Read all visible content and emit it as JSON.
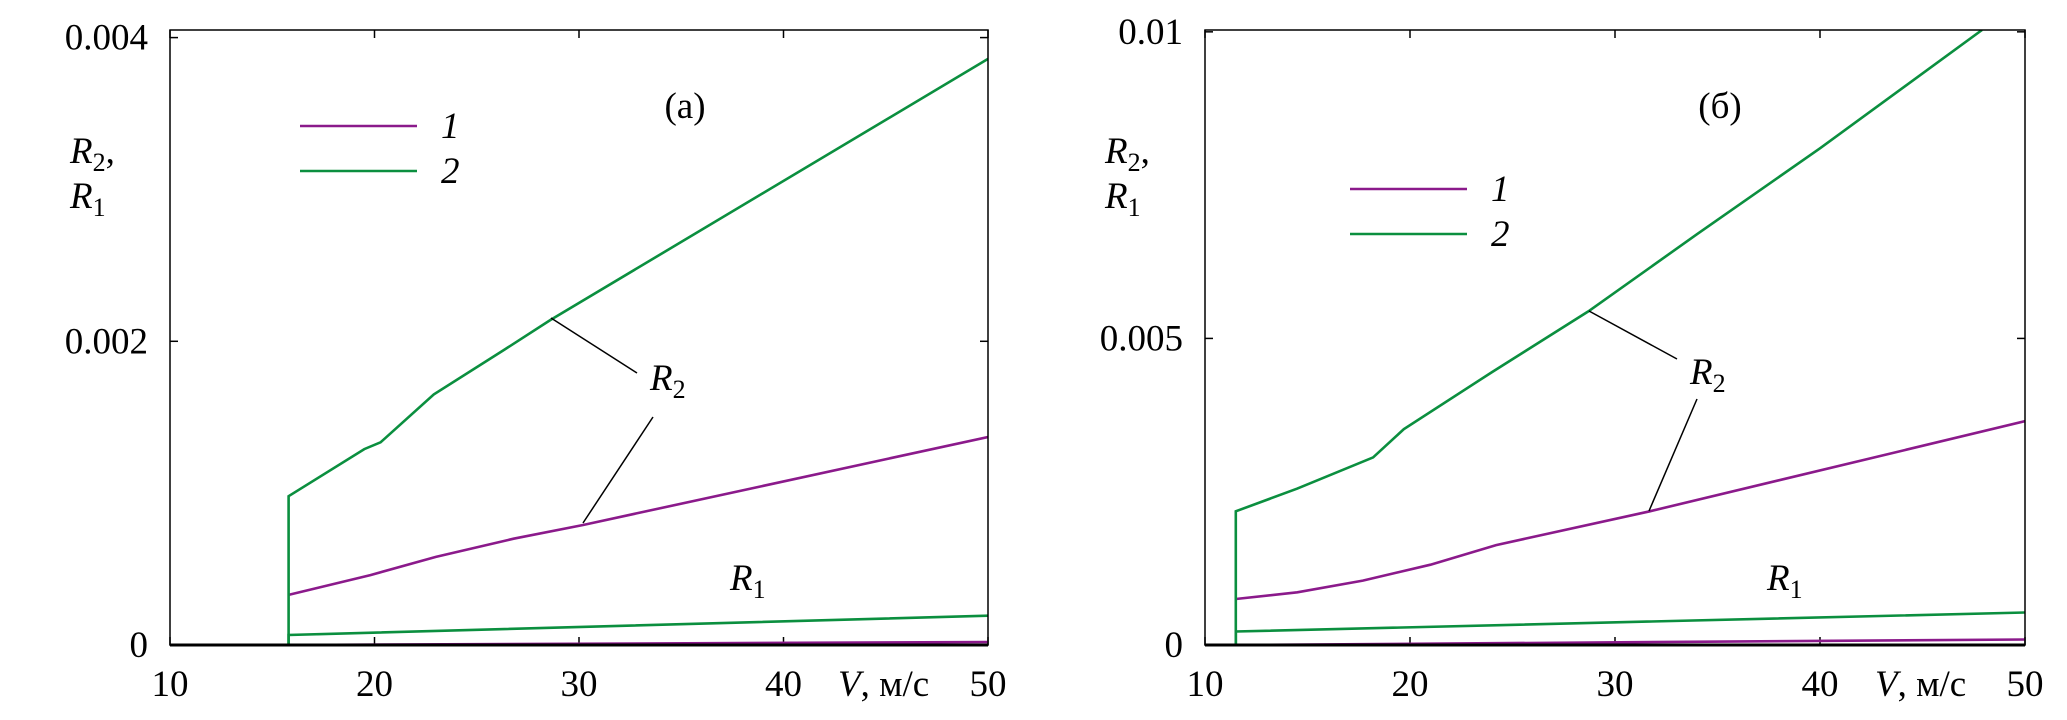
{
  "colors": {
    "series1": "#8b1a8b",
    "series2": "#0b8f3f",
    "axis": "#000000"
  },
  "chart_data": [
    {
      "type": "line",
      "panel_label": "(а)",
      "xlabel": {
        "var": "V",
        "unit": ", м/с"
      },
      "ylabel": {
        "line1_var": "R",
        "line1_sub": "2",
        "line1_suffix": ",",
        "line2_var": "R",
        "line2_sub": "1"
      },
      "xlim": [
        10,
        50
      ],
      "ylim": [
        0,
        0.00405
      ],
      "xticks": [
        "10",
        "20",
        "30",
        "40",
        "50"
      ],
      "xtick_values": [
        10,
        20,
        30,
        40,
        50
      ],
      "yticks": [
        "0",
        "0.002",
        "0.004"
      ],
      "ytick_values": [
        0,
        0.002,
        0.004
      ],
      "legend": {
        "placement": "top-left",
        "entries": [
          "1",
          "2"
        ]
      },
      "annotations": {
        "r2": {
          "var": "R",
          "sub": "2"
        },
        "r1": {
          "var": "R",
          "sub": "1"
        }
      },
      "series": [
        {
          "name": "1",
          "quantity": "R2",
          "x": [
            15.8,
            19.8,
            23,
            26.8,
            30.2,
            50
          ],
          "y": [
            0.00033,
            0.00046,
            0.00058,
            0.0007,
            0.00079,
            0.00137
          ]
        },
        {
          "name": "1",
          "quantity": "R1",
          "x": [
            15.8,
            50
          ],
          "y": [
            0,
            2e-05
          ]
        },
        {
          "name": "2",
          "quantity": "R2",
          "x": [
            15.8,
            15.8,
            19.5,
            20.3,
            22.9,
            26.3,
            28.6,
            50
          ],
          "y": [
            0,
            0.00098,
            0.00129,
            0.001335,
            0.00165,
            0.00194,
            0.00214,
            0.00386
          ]
        },
        {
          "name": "2",
          "quantity": "R1",
          "x": [
            10,
            15.8,
            15.8,
            50
          ],
          "y": [
            0,
            0,
            6.6e-05,
            0.000193
          ]
        }
      ]
    },
    {
      "type": "line",
      "panel_label": "(б)",
      "xlabel": {
        "var": "V",
        "unit": ", м/с"
      },
      "ylabel": {
        "line1_var": "R",
        "line1_sub": "2",
        "line1_suffix": ",",
        "line2_var": "R",
        "line2_sub": "1"
      },
      "xlim": [
        10,
        50
      ],
      "ylim": [
        0,
        0.01003
      ],
      "xticks": [
        "10",
        "20",
        "30",
        "40",
        "50"
      ],
      "xtick_values": [
        10,
        20,
        30,
        40,
        50
      ],
      "yticks": [
        "0",
        "0.005",
        "0.01"
      ],
      "ytick_values": [
        0,
        0.005,
        0.01
      ],
      "legend": {
        "placement": "upper-left",
        "entries": [
          "1",
          "2"
        ]
      },
      "annotations": {
        "r2": {
          "var": "R",
          "sub": "2"
        },
        "r1": {
          "var": "R",
          "sub": "1"
        }
      },
      "series": [
        {
          "name": "1",
          "quantity": "R2",
          "x": [
            11.5,
            14.5,
            17.7,
            21,
            24.2,
            31.7,
            50
          ],
          "y": [
            0.00075,
            0.00086,
            0.00105,
            0.00131,
            0.00163,
            0.00218,
            0.00365
          ]
        },
        {
          "name": "1",
          "quantity": "R1",
          "x": [
            11.5,
            50
          ],
          "y": [
            0,
            9e-05
          ]
        },
        {
          "name": "2",
          "quantity": "R2",
          "x": [
            11.5,
            11.5,
            14.5,
            18.2,
            19.7,
            24,
            28.7,
            34,
            40,
            47.9
          ],
          "y": [
            0,
            0.00218,
            0.00255,
            0.00306,
            0.00352,
            0.00445,
            0.00544,
            0.0067,
            0.0081,
            0.01003
          ]
        },
        {
          "name": "2",
          "quantity": "R1",
          "x": [
            10,
            11.5,
            11.5,
            50
          ],
          "y": [
            0,
            0,
            0.00022,
            0.00053
          ]
        }
      ]
    }
  ]
}
